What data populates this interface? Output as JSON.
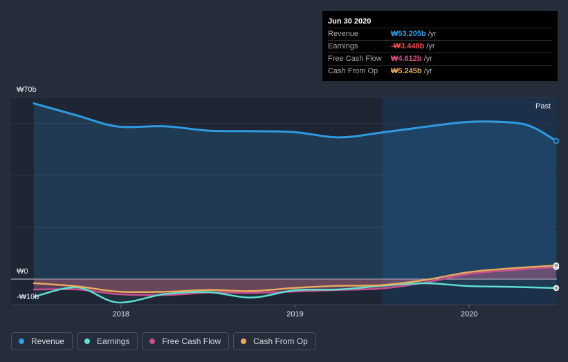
{
  "tooltip": {
    "date": "Jun 30 2020",
    "rows": [
      {
        "label": "Revenue",
        "value": "₩53.205b",
        "unit": "/yr",
        "color": "#2e9be3"
      },
      {
        "label": "Earnings",
        "value": "-₩3.448b",
        "unit": "/yr",
        "color": "#ee4f4f"
      },
      {
        "label": "Free Cash Flow",
        "value": "₩4.612b",
        "unit": "/yr",
        "color": "#d8528d"
      },
      {
        "label": "Cash From Op",
        "value": "₩5.245b",
        "unit": "/yr",
        "color": "#e8aa5c"
      }
    ]
  },
  "past_label": "Past",
  "legend": [
    {
      "label": "Revenue",
      "color": "#2e9be3"
    },
    {
      "label": "Earnings",
      "color": "#5ee0d2"
    },
    {
      "label": "Free Cash Flow",
      "color": "#c9508f"
    },
    {
      "label": "Cash From Op",
      "color": "#e8aa5c"
    }
  ],
  "chart_data": {
    "type": "line",
    "x_ticks": [
      "2018",
      "2019",
      "2020"
    ],
    "y_ticks": [
      "₩70b",
      "₩0",
      "-₩10b"
    ],
    "ylim": [
      -10,
      70
    ],
    "x_range": [
      2017.5,
      2020.5
    ],
    "past_region_start": 2019.5,
    "grid": true,
    "legend_position": "bottom",
    "series": [
      {
        "name": "Revenue",
        "color": "#2e9be3",
        "x": [
          2017.5,
          2017.75,
          2017.98,
          2018.25,
          2018.5,
          2018.75,
          2019.0,
          2019.25,
          2019.5,
          2019.75,
          2020.0,
          2020.25,
          2020.37,
          2020.5
        ],
        "y": [
          67.7,
          63.0,
          58.8,
          58.9,
          57.2,
          57.0,
          56.6,
          54.6,
          56.5,
          58.7,
          60.6,
          60.3,
          58.4,
          53.205
        ]
      },
      {
        "name": "Earnings",
        "color": "#5ee0d2",
        "x": [
          2017.5,
          2017.75,
          2017.98,
          2018.25,
          2018.5,
          2018.75,
          2019.0,
          2019.25,
          2019.5,
          2019.75,
          2020.0,
          2020.25,
          2020.5
        ],
        "y": [
          -6.8,
          -3.2,
          -9.0,
          -5.8,
          -5.0,
          -7.1,
          -4.3,
          -4.0,
          -2.6,
          -1.6,
          -2.7,
          -3.0,
          -3.448
        ]
      },
      {
        "name": "Free Cash Flow",
        "color": "#c9508f",
        "x": [
          2017.5,
          2017.75,
          2017.98,
          2018.25,
          2018.5,
          2018.75,
          2019.0,
          2019.25,
          2019.5,
          2019.75,
          2020.0,
          2020.25,
          2020.5
        ],
        "y": [
          -4.0,
          -4.0,
          -5.8,
          -6.2,
          -5.2,
          -5.3,
          -4.8,
          -4.2,
          -3.6,
          -1.3,
          2.0,
          3.5,
          4.612
        ]
      },
      {
        "name": "Cash From Op",
        "color": "#e8aa5c",
        "x": [
          2017.5,
          2017.75,
          2017.98,
          2018.25,
          2018.5,
          2018.75,
          2019.0,
          2019.25,
          2019.5,
          2019.75,
          2020.0,
          2020.25,
          2020.5
        ],
        "y": [
          -1.6,
          -2.8,
          -4.8,
          -4.9,
          -4.2,
          -4.6,
          -3.4,
          -2.6,
          -2.3,
          -0.3,
          2.7,
          4.2,
          5.245
        ]
      }
    ]
  }
}
